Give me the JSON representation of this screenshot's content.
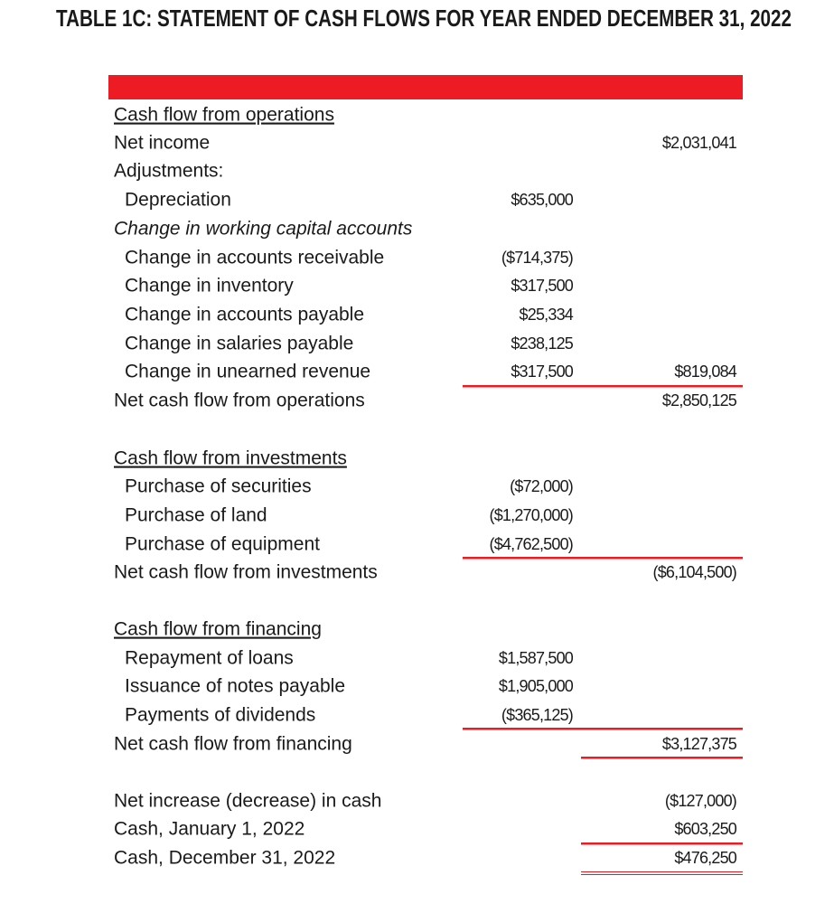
{
  "header": {
    "title": "TABLE 1C: STATEMENT OF CASH FLOWS FOR YEAR ENDED DECEMBER 31, 2022"
  },
  "table": {
    "rows": [
      {
        "label": "Cash flow from operations"
      },
      {
        "label": "Net income",
        "total": "$2,031,041"
      },
      {
        "label": "Adjustments:"
      },
      {
        "label": "Depreciation",
        "amount": "$635,000"
      },
      {
        "label": "Change in working capital accounts"
      },
      {
        "label": "Change in accounts receivable",
        "amount": "($714,375)"
      },
      {
        "label": "Change in inventory",
        "amount": "$317,500"
      },
      {
        "label": "Change in accounts payable",
        "amount": "$25,334"
      },
      {
        "label": "Change in salaries payable",
        "amount": "$238,125"
      },
      {
        "label": "Change in unearned revenue",
        "amount": "$317,500",
        "total": "$819,084"
      },
      {
        "label": "Net cash flow from operations",
        "total": "$2,850,125"
      },
      {
        "label": "Cash flow from investments"
      },
      {
        "label": "Purchase of securities",
        "amount": "($72,000)"
      },
      {
        "label": "Purchase of land",
        "amount": "($1,270,000)"
      },
      {
        "label": "Purchase of equipment",
        "amount": "($4,762,500)"
      },
      {
        "label": "Net cash flow from investments",
        "total": "($6,104,500)"
      },
      {
        "label": "Cash flow from financing"
      },
      {
        "label": "Repayment of loans",
        "amount": "$1,587,500"
      },
      {
        "label": "Issuance of notes payable",
        "amount": "$1,905,000"
      },
      {
        "label": "Payments of dividends",
        "amount": "($365,125)"
      },
      {
        "label": "Net cash flow from financing",
        "total": "$3,127,375"
      },
      {
        "label": "Net increase (decrease) in cash",
        "total": "($127,000)"
      },
      {
        "label": "Cash, January 1, 2022",
        "total": "$603,250"
      },
      {
        "label": "Cash, December 31, 2022",
        "total": "$476,250"
      }
    ]
  }
}
